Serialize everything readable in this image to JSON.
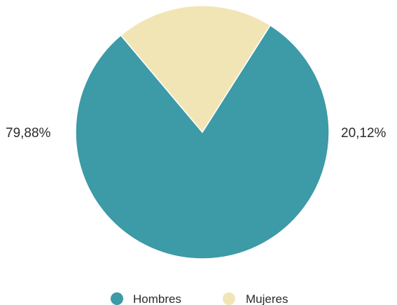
{
  "chart_data": {
    "type": "pie",
    "title": "",
    "slices": [
      {
        "label": "Hombres",
        "value": 79.88,
        "display": "79,88%",
        "color": "#3d9aa7"
      },
      {
        "label": "Mujeres",
        "value": 20.12,
        "display": "20,12%",
        "color": "#f2e5b5"
      }
    ],
    "start_angle_deg": 57.6,
    "direction": "counterclockwise",
    "legend_placement": "bottom"
  }
}
